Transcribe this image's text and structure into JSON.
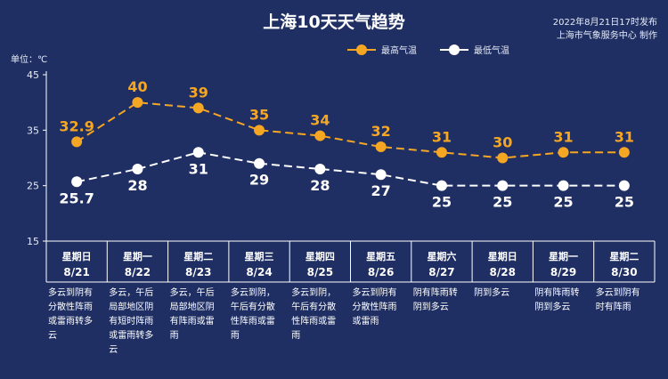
{
  "header": {
    "title": "上海10天天气趋势",
    "publish_line1": "2022年8月21日17时发布",
    "publish_line2": "上海市气象服务中心 制作",
    "unit": "单位：℃"
  },
  "colors": {
    "background": "#1f2f63",
    "high": "#f5a623",
    "low": "#ffffff",
    "axis": "#ffffff"
  },
  "chart_data": {
    "type": "line",
    "title": "上海10天天气趋势",
    "ylabel": "单位：℃",
    "ylim": [
      15,
      45
    ],
    "yticks": [
      15,
      25,
      35,
      45
    ],
    "grid": false,
    "legend_position": "top-right",
    "categories": [
      "8/21",
      "8/22",
      "8/23",
      "8/24",
      "8/25",
      "8/26",
      "8/27",
      "8/28",
      "8/29",
      "8/30"
    ],
    "series": [
      {
        "name": "最高气温",
        "color": "#f5a623",
        "values": [
          32.9,
          40,
          39,
          35,
          34,
          32,
          31,
          30,
          31,
          31
        ]
      },
      {
        "name": "最低气温",
        "color": "#ffffff",
        "values": [
          25.7,
          28,
          31,
          29,
          28,
          27,
          25,
          25,
          25,
          25
        ]
      }
    ]
  },
  "days": [
    {
      "weekday": "星期日",
      "date": "8/21",
      "weather": [
        "多云到阴有",
        "分散性阵雨",
        "或雷雨转多",
        "云"
      ]
    },
    {
      "weekday": "星期一",
      "date": "8/22",
      "weather": [
        "多云，午后",
        "局部地区阴",
        "有短时阵雨",
        "或雷雨转多",
        "云"
      ]
    },
    {
      "weekday": "星期二",
      "date": "8/23",
      "weather": [
        "多云，午后",
        "局部地区阴",
        "有阵雨或雷",
        "雨"
      ]
    },
    {
      "weekday": "星期三",
      "date": "8/24",
      "weather": [
        "多云到阴，",
        "午后有分散",
        "性阵雨或雷",
        "雨"
      ]
    },
    {
      "weekday": "星期四",
      "date": "8/25",
      "weather": [
        "多云到阴，",
        "午后有分散",
        "性阵雨或雷",
        "雨"
      ]
    },
    {
      "weekday": "星期五",
      "date": "8/26",
      "weather": [
        "多云到阴有",
        "分散性阵雨",
        "或雷雨"
      ]
    },
    {
      "weekday": "星期六",
      "date": "8/27",
      "weather": [
        "阴有阵雨转",
        "阴到多云"
      ]
    },
    {
      "weekday": "星期日",
      "date": "8/28",
      "weather": [
        "阴到多云"
      ]
    },
    {
      "weekday": "星期一",
      "date": "8/29",
      "weather": [
        "阴有阵雨转",
        "阴到多云"
      ]
    },
    {
      "weekday": "星期二",
      "date": "8/30",
      "weather": [
        "多云到阴有",
        "时有阵雨"
      ]
    }
  ]
}
